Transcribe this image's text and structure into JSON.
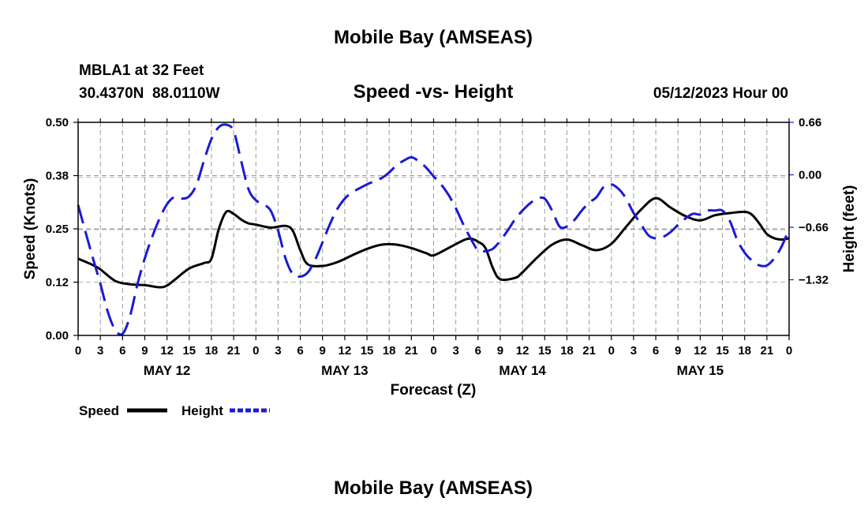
{
  "page": {
    "top_title": "Mobile Bay (AMSEAS)",
    "bottom_title": "Mobile Bay (AMSEAS)"
  },
  "chart_data": {
    "type": "line",
    "title": "Speed -vs- Height",
    "station_line1": "MBLA1 at 32 Feet",
    "station_line2": "30.4370N  88.0110W",
    "run_label": "05/12/2023 Hour 00",
    "xlabel": "Forecast (Z)",
    "ylabel_left": "Speed (Knots)",
    "ylabel_right": "Height (feet)",
    "x_range_hours": [
      0,
      96
    ],
    "x_ticks": [
      {
        "h": 0,
        "label": "0"
      },
      {
        "h": 3,
        "label": "3"
      },
      {
        "h": 6,
        "label": "6"
      },
      {
        "h": 9,
        "label": "9"
      },
      {
        "h": 12,
        "label": "12"
      },
      {
        "h": 15,
        "label": "15"
      },
      {
        "h": 18,
        "label": "18"
      },
      {
        "h": 21,
        "label": "21"
      },
      {
        "h": 24,
        "label": "0"
      },
      {
        "h": 27,
        "label": "3"
      },
      {
        "h": 30,
        "label": "6"
      },
      {
        "h": 33,
        "label": "9"
      },
      {
        "h": 36,
        "label": "12"
      },
      {
        "h": 39,
        "label": "15"
      },
      {
        "h": 42,
        "label": "18"
      },
      {
        "h": 45,
        "label": "21"
      },
      {
        "h": 48,
        "label": "0"
      },
      {
        "h": 51,
        "label": "3"
      },
      {
        "h": 54,
        "label": "6"
      },
      {
        "h": 57,
        "label": "9"
      },
      {
        "h": 60,
        "label": "12"
      },
      {
        "h": 63,
        "label": "15"
      },
      {
        "h": 66,
        "label": "18"
      },
      {
        "h": 69,
        "label": "21"
      },
      {
        "h": 72,
        "label": "0"
      },
      {
        "h": 75,
        "label": "3"
      },
      {
        "h": 78,
        "label": "6"
      },
      {
        "h": 81,
        "label": "9"
      },
      {
        "h": 84,
        "label": "12"
      },
      {
        "h": 87,
        "label": "15"
      },
      {
        "h": 90,
        "label": "18"
      },
      {
        "h": 93,
        "label": "21"
      },
      {
        "h": 96,
        "label": "0"
      }
    ],
    "date_labels": [
      {
        "h": 12,
        "label": "MAY 12"
      },
      {
        "h": 36,
        "label": "MAY 13"
      },
      {
        "h": 60,
        "label": "MAY 14"
      },
      {
        "h": 84,
        "label": "MAY 15"
      }
    ],
    "left_axis": {
      "range": [
        0.0,
        0.5
      ],
      "ticks": [
        0.0,
        0.125,
        0.25,
        0.375,
        0.5
      ],
      "tick_labels": [
        "0.00",
        "0.12",
        "0.25",
        "0.38",
        "0.50"
      ]
    },
    "right_axis": {
      "range": [
        -2.02,
        0.66
      ],
      "ticks": [
        -1.32,
        -0.66,
        0.0,
        0.66
      ],
      "tick_labels": [
        "−1.32",
        "−0.66",
        "0.00",
        "0.66"
      ]
    },
    "grid": true,
    "legend_position": "bottom-left",
    "series": [
      {
        "name": "Speed",
        "axis": "left",
        "color": "#000000",
        "style": "solid",
        "points": [
          [
            0,
            0.18
          ],
          [
            2,
            0.165
          ],
          [
            3,
            0.155
          ],
          [
            5,
            0.128
          ],
          [
            7,
            0.12
          ],
          [
            9,
            0.118
          ],
          [
            11,
            0.113
          ],
          [
            12,
            0.117
          ],
          [
            13,
            0.13
          ],
          [
            15,
            0.157
          ],
          [
            17,
            0.17
          ],
          [
            18,
            0.18
          ],
          [
            19,
            0.25
          ],
          [
            20,
            0.29
          ],
          [
            21,
            0.285
          ],
          [
            22,
            0.272
          ],
          [
            23,
            0.263
          ],
          [
            24,
            0.26
          ],
          [
            26,
            0.253
          ],
          [
            28,
            0.257
          ],
          [
            29,
            0.245
          ],
          [
            30,
            0.2
          ],
          [
            31,
            0.167
          ],
          [
            33,
            0.163
          ],
          [
            35,
            0.172
          ],
          [
            37,
            0.188
          ],
          [
            39,
            0.203
          ],
          [
            41,
            0.213
          ],
          [
            43,
            0.213
          ],
          [
            45,
            0.205
          ],
          [
            47,
            0.193
          ],
          [
            48,
            0.188
          ],
          [
            50,
            0.205
          ],
          [
            52,
            0.223
          ],
          [
            53,
            0.227
          ],
          [
            54,
            0.22
          ],
          [
            55,
            0.205
          ],
          [
            56,
            0.158
          ],
          [
            57,
            0.132
          ],
          [
            59,
            0.135
          ],
          [
            60,
            0.148
          ],
          [
            62,
            0.183
          ],
          [
            64,
            0.213
          ],
          [
            66,
            0.225
          ],
          [
            68,
            0.212
          ],
          [
            70,
            0.2
          ],
          [
            72,
            0.215
          ],
          [
            74,
            0.255
          ],
          [
            76,
            0.295
          ],
          [
            78,
            0.322
          ],
          [
            80,
            0.3
          ],
          [
            82,
            0.28
          ],
          [
            84,
            0.27
          ],
          [
            86,
            0.282
          ],
          [
            88,
            0.287
          ],
          [
            90,
            0.29
          ],
          [
            91,
            0.283
          ],
          [
            92,
            0.262
          ],
          [
            93,
            0.238
          ],
          [
            94,
            0.228
          ],
          [
            95,
            0.225
          ],
          [
            96,
            0.228
          ]
        ]
      },
      {
        "name": "Height",
        "axis": "right",
        "color": "#1a1ad6",
        "style": "dashed",
        "points": [
          [
            0,
            -0.38
          ],
          [
            1,
            -0.72
          ],
          [
            2,
            -1.05
          ],
          [
            3,
            -1.37
          ],
          [
            4,
            -1.72
          ],
          [
            5,
            -1.95
          ],
          [
            6,
            -2.0
          ],
          [
            7,
            -1.78
          ],
          [
            8,
            -1.38
          ],
          [
            9,
            -1.05
          ],
          [
            10,
            -0.78
          ],
          [
            11,
            -0.55
          ],
          [
            12,
            -0.37
          ],
          [
            13,
            -0.28
          ],
          [
            14,
            -0.3
          ],
          [
            15,
            -0.27
          ],
          [
            16,
            -0.12
          ],
          [
            17,
            0.18
          ],
          [
            18,
            0.45
          ],
          [
            19,
            0.6
          ],
          [
            20,
            0.63
          ],
          [
            21,
            0.55
          ],
          [
            22,
            0.18
          ],
          [
            23,
            -0.18
          ],
          [
            24,
            -0.32
          ],
          [
            25,
            -0.37
          ],
          [
            26,
            -0.45
          ],
          [
            27,
            -0.7
          ],
          [
            28,
            -1.05
          ],
          [
            29,
            -1.25
          ],
          [
            30,
            -1.28
          ],
          [
            31,
            -1.23
          ],
          [
            32,
            -1.07
          ],
          [
            33,
            -0.85
          ],
          [
            34,
            -0.62
          ],
          [
            35,
            -0.43
          ],
          [
            36,
            -0.3
          ],
          [
            37,
            -0.22
          ],
          [
            38,
            -0.17
          ],
          [
            39,
            -0.12
          ],
          [
            40,
            -0.08
          ],
          [
            41,
            -0.04
          ],
          [
            42,
            0.03
          ],
          [
            43,
            0.12
          ],
          [
            44,
            0.18
          ],
          [
            45,
            0.22
          ],
          [
            46,
            0.17
          ],
          [
            47,
            0.09
          ],
          [
            48,
            -0.02
          ],
          [
            49,
            -0.12
          ],
          [
            50,
            -0.25
          ],
          [
            51,
            -0.42
          ],
          [
            52,
            -0.62
          ],
          [
            53,
            -0.8
          ],
          [
            54,
            -0.95
          ],
          [
            55,
            -0.96
          ],
          [
            56,
            -0.93
          ],
          [
            57,
            -0.83
          ],
          [
            58,
            -0.7
          ],
          [
            59,
            -0.56
          ],
          [
            60,
            -0.45
          ],
          [
            61,
            -0.36
          ],
          [
            62,
            -0.3
          ],
          [
            63,
            -0.3
          ],
          [
            64,
            -0.45
          ],
          [
            65,
            -0.65
          ],
          [
            66,
            -0.65
          ],
          [
            67,
            -0.57
          ],
          [
            68,
            -0.45
          ],
          [
            69,
            -0.35
          ],
          [
            70,
            -0.28
          ],
          [
            71,
            -0.15
          ],
          [
            72,
            -0.12
          ],
          [
            73,
            -0.18
          ],
          [
            74,
            -0.3
          ],
          [
            75,
            -0.48
          ],
          [
            76,
            -0.62
          ],
          [
            77,
            -0.76
          ],
          [
            78,
            -0.8
          ],
          [
            79,
            -0.78
          ],
          [
            80,
            -0.72
          ],
          [
            81,
            -0.63
          ],
          [
            82,
            -0.55
          ],
          [
            83,
            -0.49
          ],
          [
            84,
            -0.5
          ],
          [
            85,
            -0.45
          ],
          [
            86,
            -0.45
          ],
          [
            87,
            -0.45
          ],
          [
            88,
            -0.58
          ],
          [
            89,
            -0.82
          ],
          [
            90,
            -0.98
          ],
          [
            91,
            -1.08
          ],
          [
            92,
            -1.14
          ],
          [
            93,
            -1.14
          ],
          [
            94,
            -1.05
          ],
          [
            95,
            -0.9
          ],
          [
            96,
            -0.68
          ]
        ]
      }
    ]
  }
}
